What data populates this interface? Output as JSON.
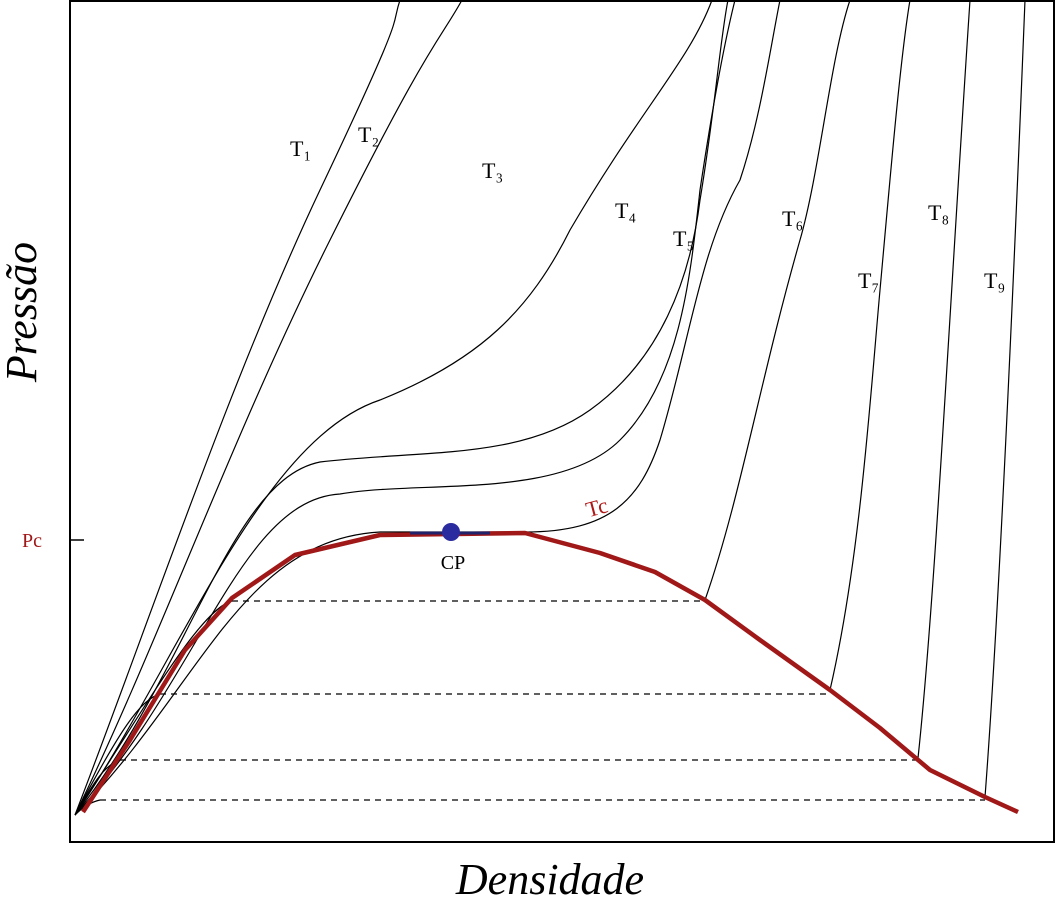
{
  "axes": {
    "y_label": "Pressão",
    "x_label": "Densidade",
    "y_marker": "Pc"
  },
  "critical_point": {
    "label": "CP"
  },
  "critical_isotherm": {
    "label": "Tc"
  },
  "isotherms": [
    {
      "label": "T₁"
    },
    {
      "label": "T₂"
    },
    {
      "label": "T₃"
    },
    {
      "label": "T₄"
    },
    {
      "label": "T₅"
    },
    {
      "label": "T₆"
    },
    {
      "label": "T₇"
    },
    {
      "label": "T₈"
    },
    {
      "label": "T₉"
    }
  ]
}
